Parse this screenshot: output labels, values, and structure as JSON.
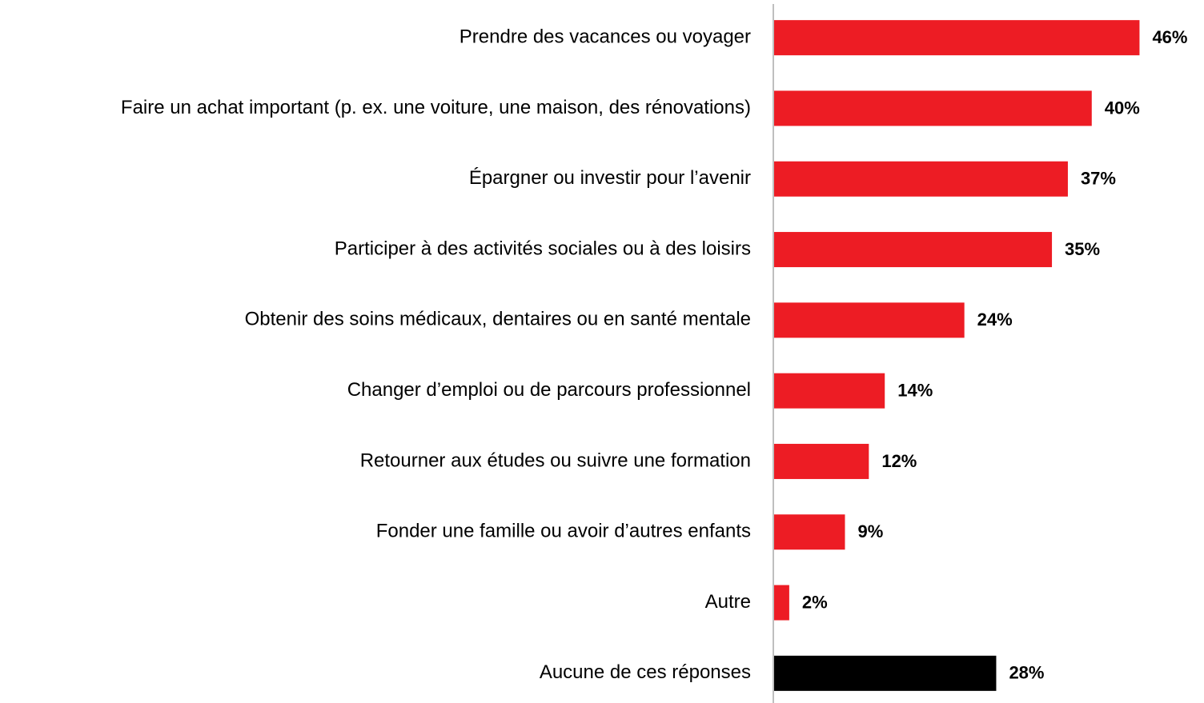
{
  "chart_data": {
    "type": "hbar",
    "categories": [
      "Prendre des vacances ou voyager",
      "Faire un achat important (p. ex. une voiture, une maison, des rénovations)",
      "Épargner ou investir pour l’avenir",
      "Participer à des activités sociales ou à des loisirs",
      "Obtenir des soins médicaux, dentaires ou en santé mentale",
      "Changer d’emploi ou de parcours professionnel",
      "Retourner aux études ou suivre une formation",
      "Fonder une famille ou avoir d’autres enfants",
      "Autre",
      "Aucune de ces réponses"
    ],
    "values": [
      46,
      40,
      37,
      35,
      24,
      14,
      12,
      9,
      2,
      28
    ],
    "value_labels": [
      "46%",
      "40%",
      "37%",
      "35%",
      "24%",
      "14%",
      "12%",
      "9%",
      "2%",
      "28%"
    ],
    "colors": [
      "#ed1c24",
      "#ed1c24",
      "#ed1c24",
      "#ed1c24",
      "#ed1c24",
      "#ed1c24",
      "#ed1c24",
      "#ed1c24",
      "#ed1c24",
      "#000000"
    ],
    "xlim": [
      0,
      54
    ]
  }
}
